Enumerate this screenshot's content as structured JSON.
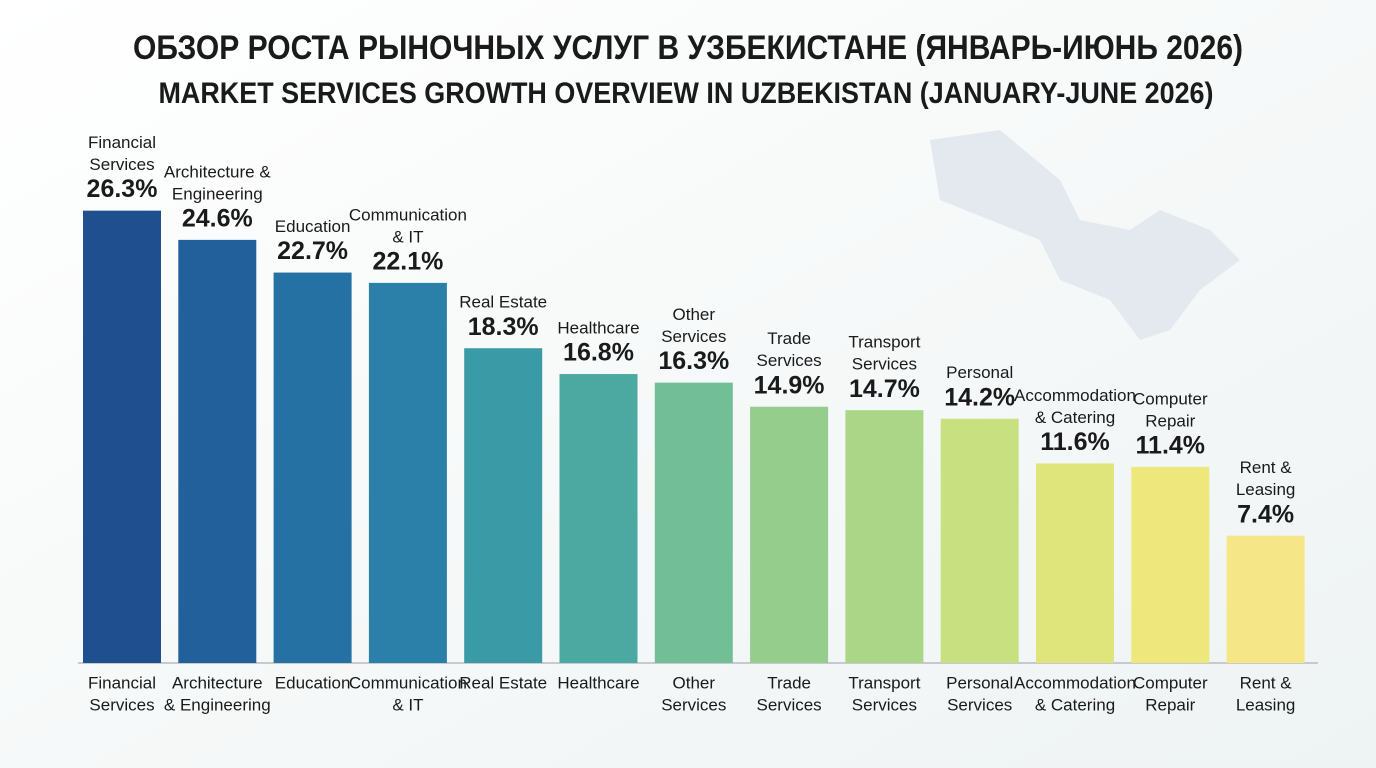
{
  "chart_data": {
    "type": "bar",
    "title": "ОБЗОР РОСТА РЫНОЧНЫХ УСЛУГ В УЗБЕКИСТАНЕ (ЯНВАРЬ-ИЮНЬ 2026)",
    "subtitle": "MARKET SERVICES GROWTH OVERVIEW IN UZBEKISTAN (JANUARY-JUNE 2026)",
    "categories": [
      [
        "Financial",
        "Services"
      ],
      [
        "Architecture",
        "& Engineering"
      ],
      [
        "Education"
      ],
      [
        "Communication",
        "& IT"
      ],
      [
        "Real Estate"
      ],
      [
        "Healthcare"
      ],
      [
        "Other",
        "Services"
      ],
      [
        "Trade",
        "Services"
      ],
      [
        "Transport",
        "Services"
      ],
      [
        "Personal",
        "Services"
      ],
      [
        "Accommodation",
        "& Catering"
      ],
      [
        "Computer",
        "Repair"
      ],
      [
        "Rent &",
        "Leasing"
      ]
    ],
    "bar_labels": [
      [
        "Financial",
        "Services"
      ],
      [
        "Architecture &",
        "Engineering"
      ],
      [
        "Education"
      ],
      [
        "Communication",
        "& IT"
      ],
      [
        "Real Estate"
      ],
      [
        "Healthcare"
      ],
      [
        "Other",
        "Services"
      ],
      [
        "Trade",
        "Services"
      ],
      [
        "Transport",
        "Services"
      ],
      [
        "Personal"
      ],
      [
        "Accommodation",
        "& Catering"
      ],
      [
        "Computer",
        "Repair"
      ],
      [
        "Rent &",
        "Leasing"
      ]
    ],
    "values": [
      26.3,
      24.6,
      22.7,
      22.1,
      18.3,
      16.8,
      16.3,
      14.9,
      14.7,
      14.2,
      11.6,
      11.4,
      7.4
    ],
    "value_labels": [
      "26.3%",
      "24.6%",
      "22.7%",
      "22.1%",
      "18.3%",
      "16.8%",
      "16.3%",
      "14.9%",
      "14.7%",
      "14.2%",
      "11.6%",
      "11.4%",
      "7.4%"
    ],
    "colors": [
      "#1f4f8e",
      "#22609b",
      "#2571a4",
      "#2a80a9",
      "#3a9aa6",
      "#4ba9a1",
      "#72bf97",
      "#95cd8d",
      "#acd687",
      "#c8e07f",
      "#dfe57b",
      "#eee77c",
      "#f5e787"
    ]
  }
}
